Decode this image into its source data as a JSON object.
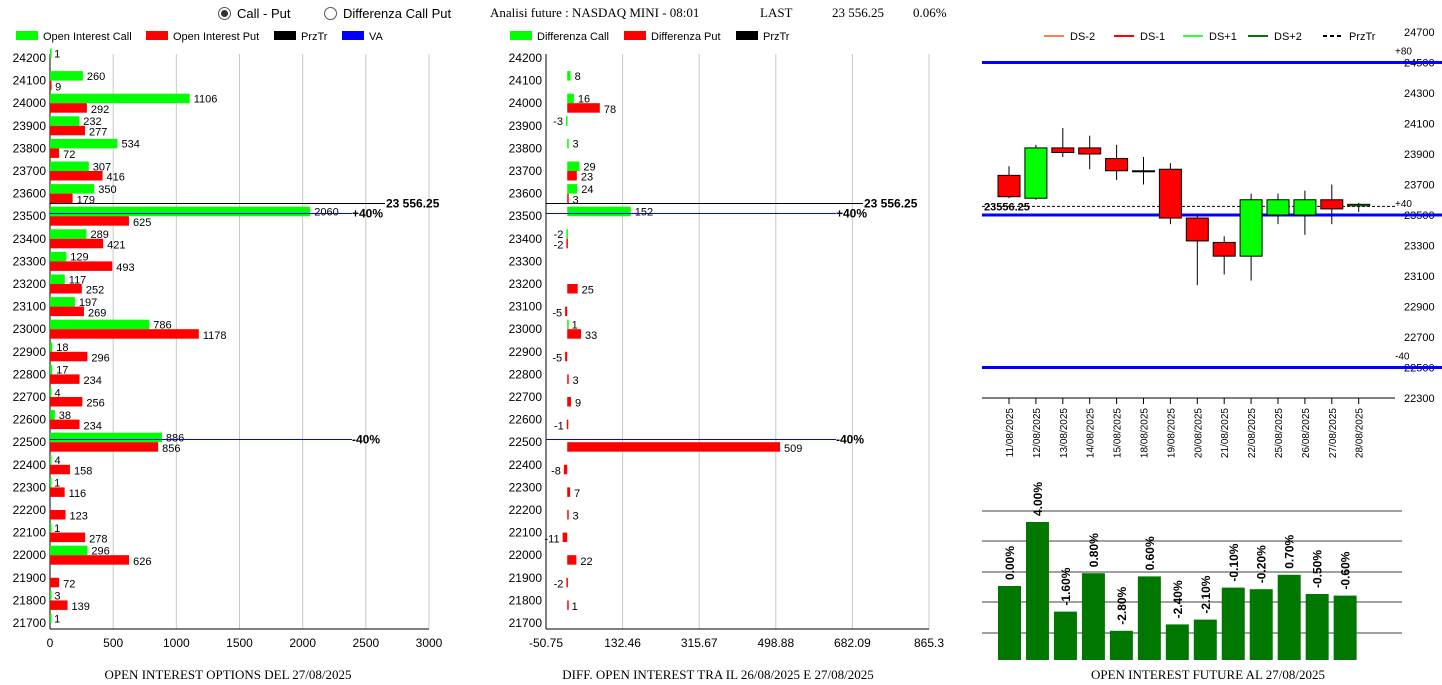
{
  "header": {
    "radio_call_put": "Call - Put",
    "radio_diff": "Differenza Call Put",
    "title": "Analisi future : NASDAQ MINI - 08:01",
    "last_label": "LAST",
    "last_value": "23 556.25",
    "change": "0.06%"
  },
  "colors": {
    "call": "#00ff00",
    "put": "#ff0000",
    "przTr": "#000000",
    "va": "#0000ff",
    "candle_up": "#00ff00",
    "candle_down": "#ff0000",
    "bar": "#007700"
  },
  "legend_left": [
    "Open Interest Call",
    "Open Interest Put",
    "PrzTr",
    "VA"
  ],
  "legend_mid": [
    "Differenza Call",
    "Differenza Put",
    "PrzTr"
  ],
  "legend_right": [
    "DS-2",
    "DS-1",
    "DS+1",
    "DS+2",
    "PrzTr"
  ],
  "chart_data": [
    {
      "type": "bar",
      "orientation": "horizontal",
      "title": "OPEN INTEREST OPTIONS DEL 27/08/2025",
      "categories": [
        24200,
        24100,
        24000,
        23900,
        23800,
        23700,
        23600,
        23500,
        23400,
        23300,
        23200,
        23100,
        23000,
        22900,
        22800,
        22700,
        22600,
        22500,
        22400,
        22300,
        22200,
        22100,
        22000,
        21900,
        21800,
        21700
      ],
      "series": [
        {
          "name": "Open Interest Call",
          "values": [
            1,
            260,
            1106,
            232,
            534,
            307,
            350,
            2060,
            289,
            129,
            117,
            197,
            786,
            18,
            17,
            4,
            38,
            886,
            4,
            1,
            null,
            1,
            296,
            null,
            3,
            1
          ]
        },
        {
          "name": "Open Interest Put",
          "values": [
            null,
            9,
            292,
            277,
            72,
            416,
            179,
            625,
            421,
            493,
            252,
            269,
            1178,
            296,
            234,
            256,
            234,
            856,
            158,
            116,
            123,
            278,
            626,
            72,
            139,
            null
          ]
        }
      ],
      "xticks": [
        "0",
        "500",
        "1000",
        "1500",
        "2000",
        "2500",
        "3000"
      ],
      "xlim": [
        0,
        3000
      ],
      "przTr": 23556.25,
      "przTr_label": "23 556.25",
      "va": [
        {
          "y": 23500,
          "label": "+40%"
        },
        {
          "y": 22500,
          "label": "-40%"
        }
      ]
    },
    {
      "type": "bar",
      "orientation": "horizontal",
      "title": "DIFF. OPEN INTEREST TRA IL 26/08/2025 E 27/08/2025",
      "categories": [
        24200,
        24100,
        24000,
        23900,
        23800,
        23700,
        23600,
        23500,
        23400,
        23300,
        23200,
        23100,
        23000,
        22900,
        22800,
        22700,
        22600,
        22500,
        22400,
        22300,
        22200,
        22100,
        22000,
        21900,
        21800,
        21700
      ],
      "series": [
        {
          "name": "Differenza Call",
          "values": [
            null,
            8,
            16,
            -3,
            3,
            29,
            24,
            152,
            -2,
            null,
            null,
            null,
            1,
            null,
            null,
            null,
            null,
            null,
            null,
            null,
            null,
            null,
            null,
            null,
            null,
            null
          ]
        },
        {
          "name": "Differenza Put",
          "values": [
            null,
            null,
            78,
            null,
            null,
            23,
            3,
            null,
            -2,
            null,
            25,
            -5,
            33,
            -5,
            3,
            9,
            -1,
            509,
            -8,
            7,
            3,
            -11,
            22,
            -2,
            1,
            null
          ]
        }
      ],
      "xticks": [
        "-50.75",
        "132.46",
        "315.67",
        "498.88",
        "682.09",
        "865.3"
      ],
      "xlim": [
        -50.75,
        865.3
      ],
      "przTr": 23556.25,
      "przTr_label": "23 556.25",
      "va": [
        {
          "y": 23500,
          "label": "+40%"
        },
        {
          "y": 22500,
          "label": "-40%"
        }
      ]
    },
    {
      "type": "candlestick",
      "dates": [
        "11/08/2025",
        "12/08/2025",
        "13/08/2025",
        "14/08/2025",
        "15/08/2025",
        "18/08/2025",
        "19/08/2025",
        "20/08/2025",
        "21/08/2025",
        "22/08/2025",
        "25/08/2025",
        "26/08/2025",
        "27/08/2025",
        "28/08/2025"
      ],
      "open": [
        23760,
        23610,
        23940,
        23940,
        23870,
        23790,
        23800,
        23480,
        23320,
        23230,
        23500,
        23500,
        23600,
        23560
      ],
      "close": [
        23620,
        23940,
        23910,
        23900,
        23790,
        23790,
        23480,
        23330,
        23230,
        23600,
        23600,
        23600,
        23540,
        23570
      ],
      "high": [
        23820,
        23960,
        24070,
        24020,
        23960,
        23880,
        23840,
        23500,
        23360,
        23640,
        23640,
        23660,
        23700,
        23580
      ],
      "low": [
        23610,
        23600,
        23880,
        23800,
        23730,
        23700,
        23440,
        23040,
        23110,
        23070,
        23440,
        23370,
        23440,
        23520
      ],
      "yticks": [
        "24700",
        "24500",
        "24300",
        "24100",
        "23900",
        "23700",
        "23500",
        "23300",
        "23100",
        "22900",
        "22700",
        "22500",
        "22300"
      ],
      "ylim": [
        22300,
        24700
      ],
      "levels": [
        {
          "y": 24500,
          "label": "+80"
        },
        {
          "y": 23500,
          "label": "+40"
        },
        {
          "y": 22500,
          "label": "-40"
        }
      ],
      "przTr": 23556.25,
      "przTr_label": "23556.25"
    },
    {
      "type": "bar",
      "title": "OPEN INTEREST FUTURE AL 27/08/2025",
      "values": [
        0.0,
        4.0,
        -1.6,
        0.8,
        -2.8,
        0.6,
        -2.4,
        -2.1,
        -0.1,
        -0.2,
        0.7,
        -0.5,
        -0.6
      ],
      "labels": [
        "0.00%",
        "4.00%",
        "-1.60%",
        "0.80%",
        "-2.80%",
        "0.60%",
        "-2.40%",
        "-2.10%",
        "-0.10%",
        "-0.20%",
        "0.70%",
        "-0.50%",
        "-0.60%"
      ]
    }
  ]
}
